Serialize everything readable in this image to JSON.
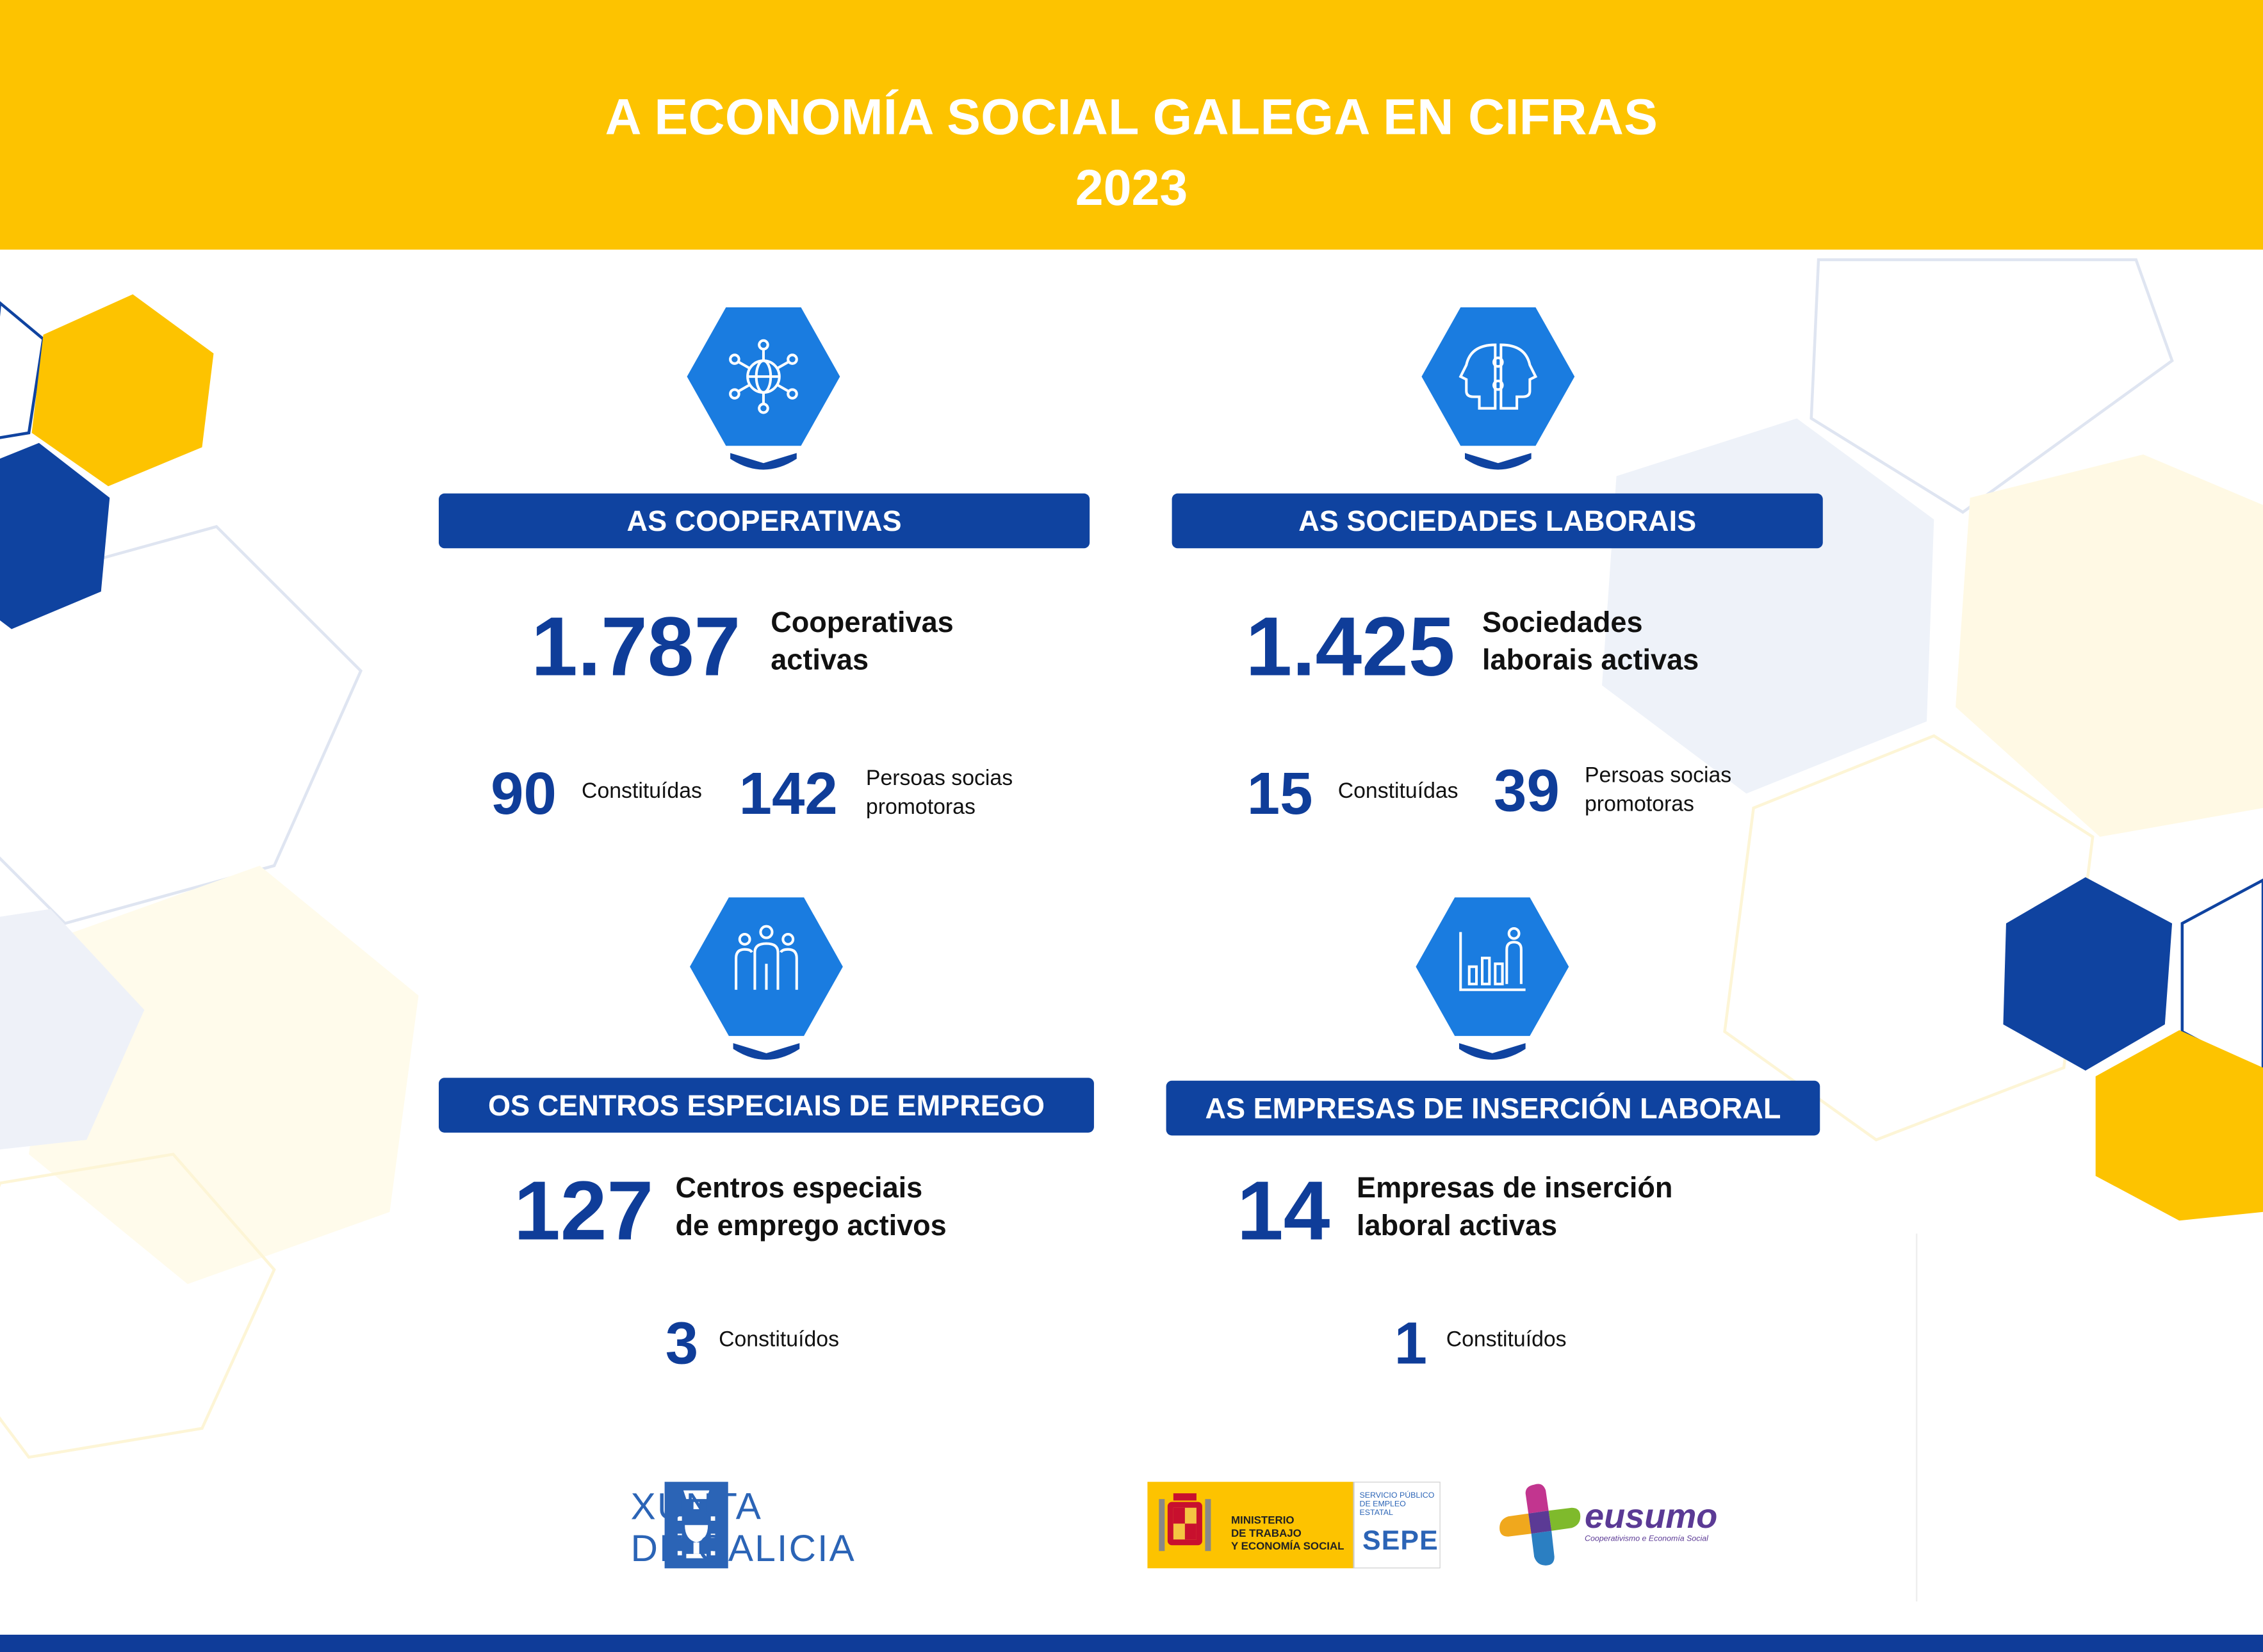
{
  "header": {
    "title": "A ECONOMÍA SOCIAL GALEGA EN CIFRAS",
    "year": "2023"
  },
  "sections": {
    "cooperativas": {
      "icon": "network-globe-icon",
      "heading": "AS COOPERATIVAS",
      "main_value": "1.787",
      "main_label": [
        "Cooperativas",
        "activas"
      ],
      "constituidas_value": "90",
      "constituidas_label": "Constituídas",
      "persoas_value": "142",
      "persoas_label": [
        "Persoas socias",
        "promotoras"
      ]
    },
    "sociedades_laborais": {
      "icon": "two-heads-puzzle-icon",
      "heading": "AS SOCIEDADES LABORAIS",
      "main_value": "1.425",
      "main_label": [
        "Sociedades",
        "laborais activas"
      ],
      "constituidas_value": "15",
      "constituidas_label": "Constituídas",
      "persoas_value": "39",
      "persoas_label": [
        "Persoas socias",
        "promotoras"
      ]
    },
    "centros_especiais": {
      "icon": "group-of-people-icon",
      "heading": "OS CENTROS ESPECIAIS DE EMPREGO",
      "main_value": "127",
      "main_label": [
        "Centros especiais",
        "de emprego activos"
      ],
      "constituidos_value": "3",
      "constituidos_label": "Constituídos"
    },
    "empresas_insercion": {
      "icon": "person-bar-chart-icon",
      "heading": "AS EMPRESAS DE INSERCIÓN LABORAL",
      "main_value": "14",
      "main_label": [
        "Empresas de inserción",
        "laboral activas"
      ],
      "constituidos_value": "1",
      "constituidos_label": "Constituídos"
    }
  },
  "logos": {
    "xunta": [
      "XUNTA",
      "DE GALICIA"
    ],
    "ministerio": [
      "MINISTERIO",
      "DE TRABAJO",
      "Y ECONOMÍA SOCIAL"
    ],
    "sepe_small": [
      "SERVICIO PÚBLICO",
      "DE EMPLEO ESTATAL"
    ],
    "sepe": "SEPE",
    "eusumo": "eusumo",
    "eusumo_tagline": "Cooperativismo e Economía Social"
  },
  "colors": {
    "yellow": "#fdc300",
    "navy": "#0f43a0",
    "icon_blue": "#1a7ce0",
    "number_blue": "#0f3d99"
  }
}
